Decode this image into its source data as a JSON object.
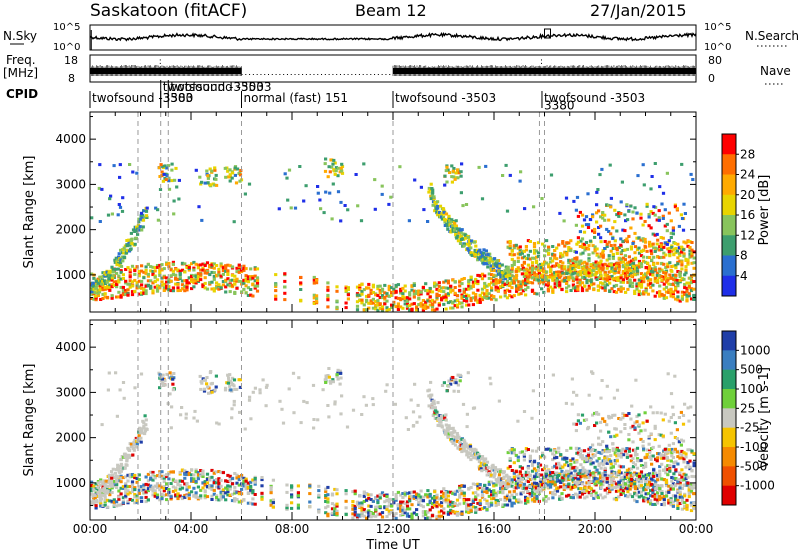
{
  "header": {
    "station": "Saskatoon (fitACF)",
    "beam": "Beam 12",
    "date": "27/Jan/2015"
  },
  "noise_panel": {
    "left_label": "N.Sky",
    "left_ticks": [
      "10^5",
      "10^0"
    ],
    "right_ticks": [
      "10^5",
      "10^0"
    ],
    "right_label": "N.Search"
  },
  "freq_panel": {
    "left_label_1": "Freq.",
    "left_label_2": "[MHz]",
    "left_ticks": [
      "18",
      "8"
    ],
    "right_ticks": [
      "80",
      "0"
    ],
    "right_label": "Nave"
  },
  "cpid_panel": {
    "label": "CPID",
    "segments": [
      {
        "text": "twofsound -3503",
        "row": 1,
        "start_hour": 0.0
      },
      {
        "text": "3380",
        "row": 1,
        "start_hour": 2.8
      },
      {
        "text": "twofsound -3503",
        "row": 0,
        "start_hour": 2.8
      },
      {
        "text": "twofsound -3503",
        "row": 0,
        "start_hour": 3.1
      },
      {
        "text": "normal (fast) 151",
        "row": 1,
        "start_hour": 6.0
      },
      {
        "text": "twofsound -3503",
        "row": 1,
        "start_hour": 12.0
      },
      {
        "text": "twofsound -3503",
        "row": 1,
        "start_hour": 17.9
      },
      {
        "text": "3380",
        "row": 1.7,
        "start_hour": 17.9
      }
    ]
  },
  "power_panel": {
    "ylabel": "Slant Range [km]",
    "yticks": [
      "1000",
      "2000",
      "3000",
      "4000"
    ],
    "colorbar": {
      "label": "Power [dB]",
      "ticks": [
        "28",
        "24",
        "20",
        "16",
        "12",
        "8",
        "4"
      ],
      "colors": [
        "#ff0000",
        "#ff6e00",
        "#ffaa00",
        "#e8d400",
        "#88c45c",
        "#3d9e6e",
        "#2a6fd0",
        "#1f2fe8"
      ]
    }
  },
  "velocity_panel": {
    "ylabel": "Slant Range [km]",
    "yticks": [
      "1000",
      "2000",
      "3000",
      "4000"
    ],
    "colorbar": {
      "label": "Velocity [m s-1]",
      "ticks": [
        "1000",
        "500",
        "100",
        "25",
        "-25",
        "-100",
        "-500",
        "-1000"
      ],
      "colors": [
        "#1f3ea8",
        "#3a7ec0",
        "#2aa06a",
        "#6fd03a",
        "#c8c8c0",
        "#f5c400",
        "#f58a00",
        "#f05000",
        "#e00000"
      ]
    }
  },
  "xaxis": {
    "label": "Time UT",
    "ticks": [
      "00:00",
      "04:00",
      "08:00",
      "12:00",
      "16:00",
      "20:00",
      "00:00"
    ]
  },
  "chart_data": {
    "type": "heatmap",
    "title": "Saskatoon (fitACF) Beam 12 27/Jan/2015",
    "xlabel": "Time UT",
    "ylabel": "Slant Range [km]",
    "x_range_hours": [
      0,
      24
    ],
    "ylim_km": [
      180,
      4600
    ],
    "power_db_range": [
      0,
      30
    ],
    "velocity_range": [
      -1000,
      1000
    ],
    "mode_change_hours": [
      1.9,
      2.8,
      3.1,
      6.0,
      12.0,
      17.8,
      18.0
    ],
    "scatter_regions": [
      {
        "name": "near-range band",
        "t": [
          0,
          24
        ],
        "range_km": [
          500,
          1400
        ],
        "power_db": 16
      },
      {
        "name": "midnight arc",
        "t": [
          0,
          2.2
        ],
        "range_km": [
          600,
          2300
        ],
        "power_db": 10
      },
      {
        "name": "far arc",
        "t": [
          13.5,
          16.5
        ],
        "range_km": [
          800,
          3000
        ],
        "power_db": 12
      },
      {
        "name": "evening echoes",
        "t": [
          17.8,
          24
        ],
        "range_km": [
          600,
          2200
        ],
        "power_db": 18
      },
      {
        "name": "upper patches",
        "t": [
          2.8,
          10.5
        ],
        "range_km": [
          2800,
          3500
        ],
        "power_db": 10
      }
    ]
  }
}
